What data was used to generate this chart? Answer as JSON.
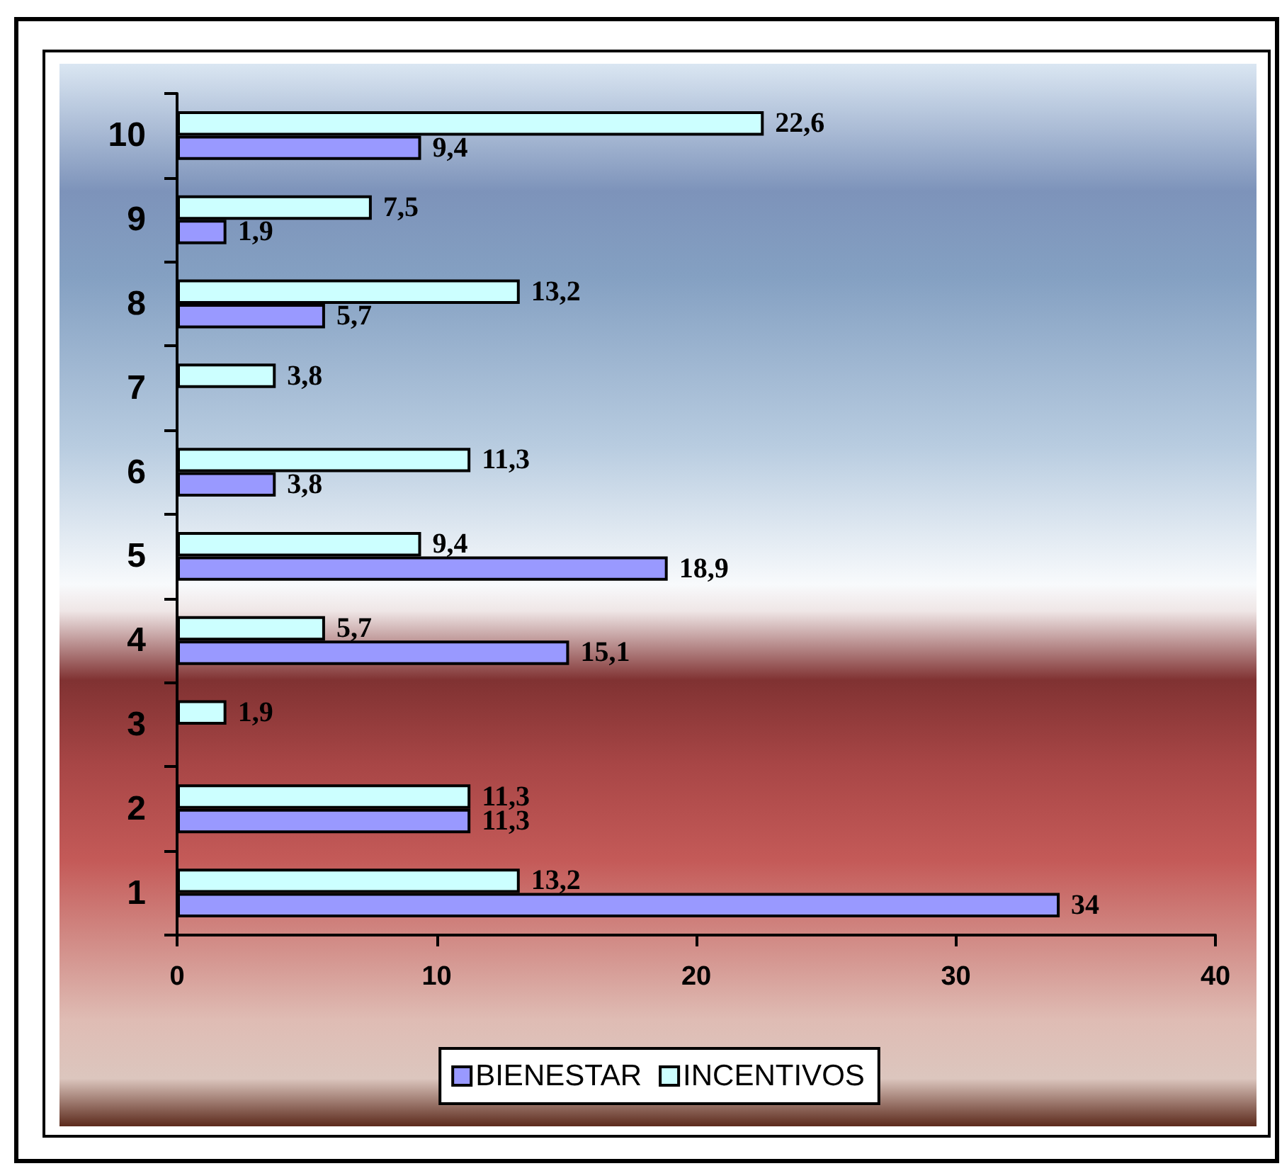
{
  "chart_data": {
    "type": "bar",
    "orientation": "horizontal",
    "categories": [
      "10",
      "9",
      "8",
      "7",
      "6",
      "5",
      "4",
      "3",
      "2",
      "1"
    ],
    "series": [
      {
        "name": "BIENESTAR",
        "color": "#9999ff",
        "values": [
          9.4,
          1.9,
          5.7,
          null,
          3.8,
          18.9,
          15.1,
          null,
          11.3,
          34
        ],
        "value_labels": [
          "9,4",
          "1,9",
          "5,7",
          null,
          "3,8",
          "18,9",
          "15,1",
          null,
          "11,3",
          "34"
        ]
      },
      {
        "name": "INCENTIVOS",
        "color": "#ccffff",
        "values": [
          22.6,
          7.5,
          13.2,
          3.8,
          11.3,
          9.4,
          5.7,
          1.9,
          11.3,
          13.2
        ],
        "value_labels": [
          "22,6",
          "7,5",
          "13,2",
          "3,8",
          "11,3",
          "9,4",
          "5,7",
          "1,9",
          "11,3",
          "13,2"
        ]
      }
    ],
    "xlim": [
      0,
      40
    ],
    "xticks": [
      0,
      10,
      20,
      30,
      40
    ],
    "grid": false,
    "legend": "bottom"
  }
}
